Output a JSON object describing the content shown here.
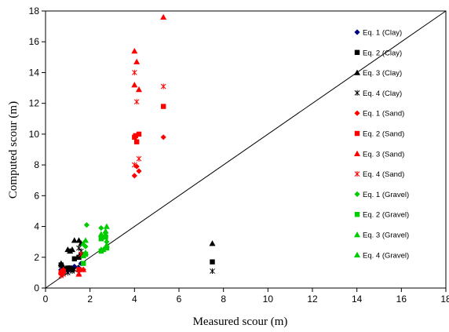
{
  "chart_data": {
    "type": "scatter",
    "xlabel": "Measured scour (m)",
    "ylabel": "Computed scour (m)",
    "xlim": [
      0,
      18
    ],
    "ylim": [
      0,
      18
    ],
    "xticks": [
      0,
      2,
      4,
      6,
      8,
      10,
      12,
      14,
      16,
      18
    ],
    "yticks": [
      0,
      2,
      4,
      6,
      8,
      10,
      12,
      14,
      16,
      18
    ],
    "grid": false,
    "legend_position": "right",
    "reference_line": {
      "x": [
        0,
        18
      ],
      "y": [
        0,
        18
      ],
      "color": "#000000"
    },
    "series": [
      {
        "name": "Eq. 1 (Clay)",
        "marker": "diamond",
        "color": "#000080",
        "points": [
          [
            0.7,
            1.2
          ],
          [
            0.8,
            1.3
          ],
          [
            0.75,
            1.1
          ],
          [
            1.0,
            1.1
          ],
          [
            1.1,
            1.3
          ],
          [
            1.2,
            1.2
          ],
          [
            1.3,
            1.4
          ],
          [
            1.5,
            1.3
          ],
          [
            1.6,
            1.6
          ]
        ]
      },
      {
        "name": "Eq. 2 (Clay)",
        "marker": "square",
        "color": "#000000",
        "points": [
          [
            0.7,
            1.5
          ],
          [
            0.8,
            1.2
          ],
          [
            1.0,
            1.3
          ],
          [
            1.1,
            1.3
          ],
          [
            1.2,
            1.2
          ],
          [
            1.3,
            1.9
          ],
          [
            1.5,
            2.0
          ],
          [
            1.6,
            2.1
          ],
          [
            7.5,
            1.7
          ]
        ]
      },
      {
        "name": "Eq. 3 (Clay)",
        "marker": "triangle",
        "color": "#000000",
        "points": [
          [
            0.7,
            1.6
          ],
          [
            0.8,
            1.4
          ],
          [
            1.0,
            2.5
          ],
          [
            1.1,
            2.4
          ],
          [
            1.2,
            2.5
          ],
          [
            1.3,
            3.1
          ],
          [
            1.5,
            3.1
          ],
          [
            1.6,
            2.9
          ],
          [
            7.5,
            2.9
          ]
        ]
      },
      {
        "name": "Eq. 4 (Clay)",
        "marker": "x",
        "color": "#000000",
        "points": [
          [
            0.7,
            1.0
          ],
          [
            0.8,
            1.1
          ],
          [
            1.0,
            1.0
          ],
          [
            1.2,
            1.1
          ],
          [
            1.3,
            1.2
          ],
          [
            1.5,
            2.6
          ],
          [
            1.6,
            2.4
          ],
          [
            7.5,
            1.1
          ]
        ]
      },
      {
        "name": "Eq. 1 (Sand)",
        "marker": "diamond",
        "color": "#ff0000",
        "points": [
          [
            0.7,
            0.9
          ],
          [
            0.8,
            1.0
          ],
          [
            1.5,
            1.1
          ],
          [
            1.7,
            1.2
          ],
          [
            4.0,
            7.3
          ],
          [
            4.1,
            7.9
          ],
          [
            4.2,
            7.6
          ],
          [
            5.3,
            9.8
          ]
        ]
      },
      {
        "name": "Eq. 2 (Sand)",
        "marker": "square",
        "color": "#ff0000",
        "points": [
          [
            0.7,
            1.0
          ],
          [
            0.8,
            1.1
          ],
          [
            1.5,
            1.2
          ],
          [
            4.0,
            9.8
          ],
          [
            4.05,
            9.9
          ],
          [
            4.1,
            9.5
          ],
          [
            4.2,
            10.0
          ],
          [
            5.3,
            11.8
          ]
        ]
      },
      {
        "name": "Eq. 3 (Sand)",
        "marker": "triangle",
        "color": "#ff0000",
        "points": [
          [
            0.7,
            1.1
          ],
          [
            0.8,
            1.2
          ],
          [
            1.5,
            0.9
          ],
          [
            1.7,
            1.2
          ],
          [
            4.0,
            13.2
          ],
          [
            4.0,
            15.4
          ],
          [
            4.1,
            14.7
          ],
          [
            4.2,
            12.9
          ],
          [
            5.3,
            17.6
          ]
        ]
      },
      {
        "name": "Eq. 4 (Sand)",
        "marker": "x",
        "color": "#ff0000",
        "points": [
          [
            0.7,
            0.8
          ],
          [
            0.8,
            0.9
          ],
          [
            1.5,
            1.0
          ],
          [
            1.6,
            2.2
          ],
          [
            4.0,
            8.0
          ],
          [
            4.0,
            14.0
          ],
          [
            4.1,
            12.1
          ],
          [
            4.2,
            8.4
          ],
          [
            5.3,
            13.1
          ]
        ]
      },
      {
        "name": "Eq. 1 (Gravel)",
        "marker": "diamond",
        "color": "#00cc00",
        "points": [
          [
            1.8,
            2.7
          ],
          [
            1.85,
            4.1
          ],
          [
            2.5,
            3.9
          ],
          [
            2.7,
            3.6
          ],
          [
            2.75,
            3.0
          ]
        ]
      },
      {
        "name": "Eq. 2 (Gravel)",
        "marker": "square",
        "color": "#00cc00",
        "points": [
          [
            1.7,
            1.6
          ],
          [
            1.8,
            2.2
          ],
          [
            2.5,
            3.2
          ],
          [
            2.7,
            3.3
          ],
          [
            2.75,
            2.6
          ],
          [
            2.5,
            2.4
          ]
        ]
      },
      {
        "name": "Eq. 3 (Gravel)",
        "marker": "triangle",
        "color": "#00cc00",
        "points": [
          [
            1.7,
            2.9
          ],
          [
            1.8,
            3.1
          ],
          [
            2.5,
            3.5
          ],
          [
            2.7,
            3.7
          ],
          [
            2.75,
            4.0
          ],
          [
            2.6,
            2.5
          ]
        ]
      },
      {
        "name": "Eq. 4 (Gravel)",
        "marker": "triangle",
        "color": "#00cc00",
        "points": [
          [
            1.7,
            2.1
          ],
          [
            1.8,
            2.3
          ],
          [
            2.5,
            2.5
          ],
          [
            2.6,
            3.3
          ],
          [
            2.75,
            2.8
          ],
          [
            2.7,
            3.5
          ]
        ]
      }
    ]
  }
}
